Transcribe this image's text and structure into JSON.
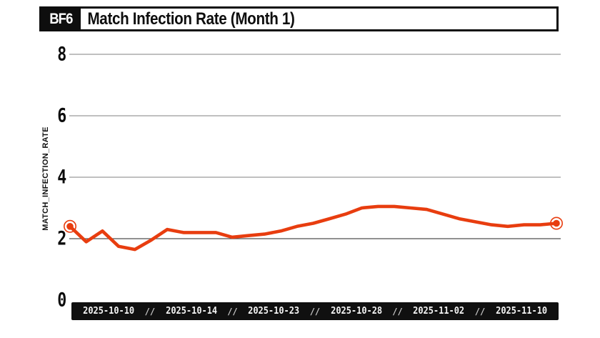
{
  "header": {
    "badge": "BF6",
    "title": "Match Infection Rate (Month 1)"
  },
  "chart_data": {
    "type": "line",
    "title": "Match Infection Rate (Month 1)",
    "ylabel": "MATCH_INFECTION_RATE",
    "y_ticks": [
      "8",
      "6",
      "4",
      "2",
      "0"
    ],
    "y_gridlines": [
      8,
      6,
      4,
      2
    ],
    "ylim": [
      0,
      8.4
    ],
    "grid_on": true,
    "x_tick_labels": [
      "2025-10-10",
      "2025-10-14",
      "2025-10-23",
      "2025-10-28",
      "2025-11-02",
      "2025-11-10"
    ],
    "x_tick_separator": "//",
    "series": [
      {
        "name": "match_infection_rate",
        "values": [
          2.4,
          1.9,
          2.25,
          1.75,
          1.65,
          1.95,
          2.3,
          2.2,
          2.2,
          2.2,
          2.05,
          2.1,
          2.15,
          2.25,
          2.4,
          2.5,
          2.65,
          2.8,
          3.0,
          3.05,
          3.05,
          3.0,
          2.95,
          2.8,
          2.65,
          2.55,
          2.45,
          2.4,
          2.45,
          2.45,
          2.5
        ]
      }
    ],
    "markers": "ring markers on first and last point",
    "line_color": "#e83d0f",
    "grid_color": "#9a9a9a",
    "baseline_color": "#4f4f4f",
    "strip_bg": "#101010",
    "strip_text_color": "#f5f5f5",
    "separator_color": "#c4c4c4"
  }
}
